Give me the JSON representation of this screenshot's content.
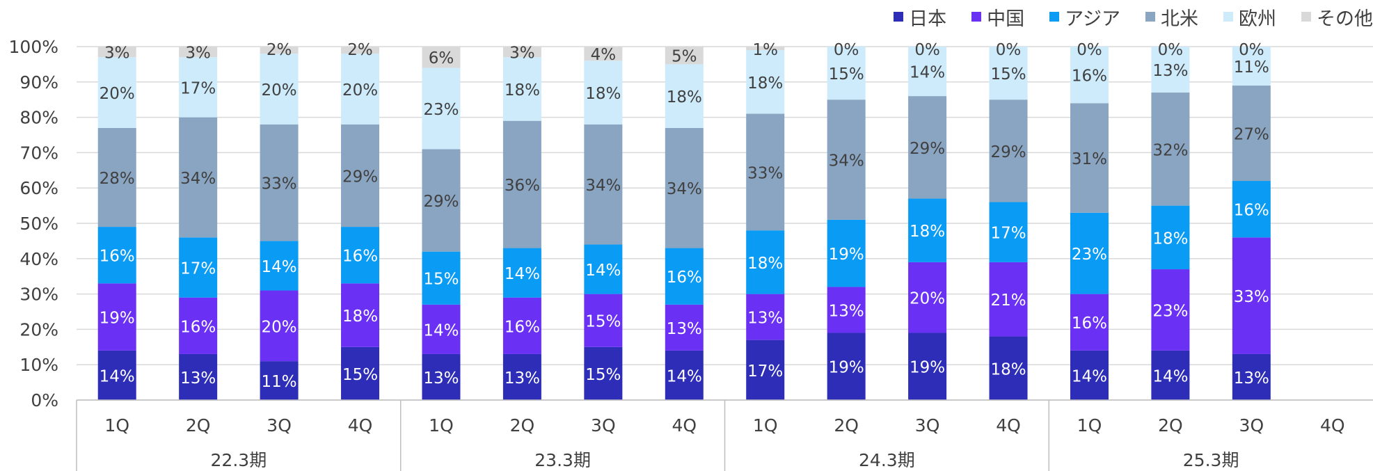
{
  "chart_data": {
    "type": "bar",
    "stacked": true,
    "percent": true,
    "ylim": [
      0,
      100
    ],
    "yticks": [
      "0%",
      "10%",
      "20%",
      "30%",
      "40%",
      "50%",
      "60%",
      "70%",
      "80%",
      "90%",
      "100%"
    ],
    "grid": true,
    "legend_position": "top-right",
    "categories": [
      "1Q",
      "2Q",
      "3Q",
      "4Q",
      "1Q",
      "2Q",
      "3Q",
      "4Q",
      "1Q",
      "2Q",
      "3Q",
      "4Q",
      "1Q",
      "2Q",
      "3Q",
      "4Q"
    ],
    "groups": [
      {
        "label": "22.3期",
        "count": 4
      },
      {
        "label": "23.3期",
        "count": 4
      },
      {
        "label": "24.3期",
        "count": 4
      },
      {
        "label": "25.3期",
        "count": 4
      }
    ],
    "series": [
      {
        "name": "日本",
        "color": "#2E2DB8",
        "label_color": "#ffffff",
        "values": [
          14,
          13,
          11,
          15,
          13,
          13,
          15,
          14,
          17,
          19,
          19,
          18,
          14,
          14,
          13,
          null
        ]
      },
      {
        "name": "中国",
        "color": "#6A31F5",
        "label_color": "#ffffff",
        "values": [
          19,
          16,
          20,
          18,
          14,
          16,
          15,
          13,
          13,
          13,
          20,
          21,
          16,
          23,
          33,
          null
        ]
      },
      {
        "name": "アジア",
        "color": "#0A9BF5",
        "label_color": "#ffffff",
        "values": [
          16,
          17,
          14,
          16,
          15,
          14,
          14,
          16,
          18,
          19,
          18,
          17,
          23,
          18,
          16,
          null
        ]
      },
      {
        "name": "北米",
        "color": "#8AA5C2",
        "label_color": "#404040",
        "values": [
          28,
          34,
          33,
          29,
          29,
          36,
          34,
          34,
          33,
          34,
          29,
          29,
          31,
          32,
          27,
          null
        ]
      },
      {
        "name": "欧州",
        "color": "#CDEBFB",
        "label_color": "#404040",
        "values": [
          20,
          17,
          20,
          20,
          23,
          18,
          18,
          18,
          18,
          15,
          14,
          15,
          16,
          13,
          11,
          null
        ]
      },
      {
        "name": "その他",
        "color": "#D9D9D9",
        "label_color": "#404040",
        "values": [
          3,
          3,
          2,
          2,
          6,
          3,
          4,
          5,
          1,
          0,
          0,
          0,
          0,
          0,
          0,
          null
        ]
      }
    ]
  }
}
